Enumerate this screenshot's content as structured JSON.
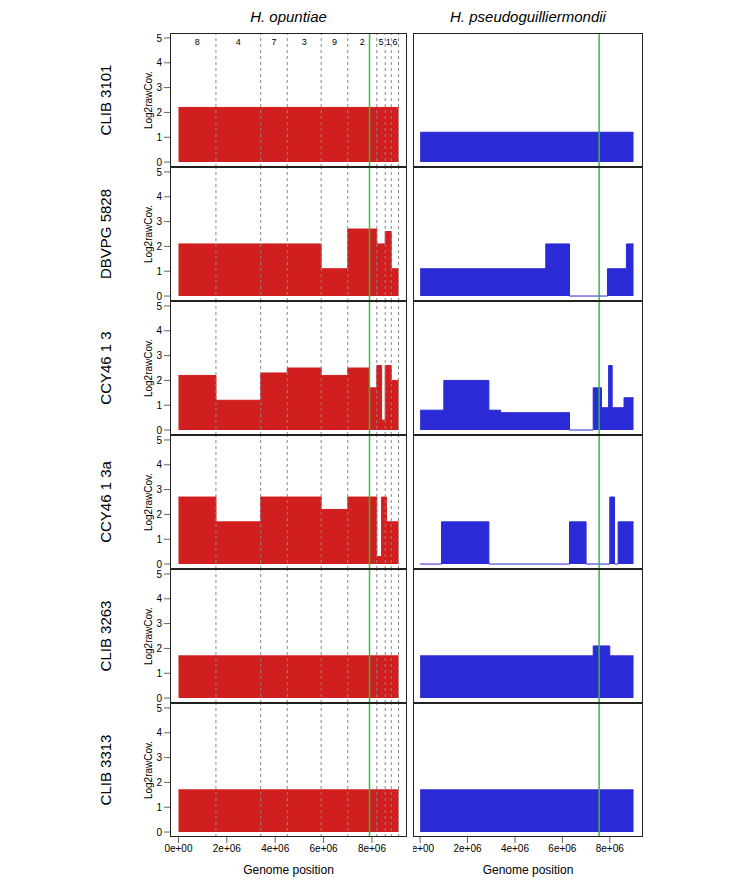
{
  "chart_data": [
    {
      "type": "area",
      "line_style": "step",
      "title": "H. opuntiae",
      "row_label": "CLIB 3101",
      "ylabel": "Log2rawCov.",
      "color": "#d11f1f",
      "x": [
        0,
        9100000
      ],
      "values": [
        2.2,
        2.2
      ],
      "xlim": [
        -350000,
        9450000
      ],
      "ylim": [
        -0.2,
        5.2
      ],
      "xticks": [
        {
          "value": 0,
          "label": "0e+00"
        },
        {
          "value": 2000000,
          "label": "2e+06"
        },
        {
          "value": 4000000,
          "label": "4e+06"
        },
        {
          "value": 6000000,
          "label": "6e+06"
        },
        {
          "value": 8000000,
          "label": "8e+06"
        }
      ],
      "yticks": [
        0,
        1,
        2,
        3,
        4,
        5
      ],
      "tick_labels": "y",
      "reference_x": 7900000,
      "chromosomes": [
        {
          "name": "8",
          "start": 0,
          "end": 1550000
        },
        {
          "name": "4",
          "start": 1550000,
          "end": 3400000
        },
        {
          "name": "7",
          "start": 3400000,
          "end": 4500000
        },
        {
          "name": "3",
          "start": 4500000,
          "end": 5900000
        },
        {
          "name": "9",
          "start": 5900000,
          "end": 7000000
        },
        {
          "name": "2",
          "start": 7000000,
          "end": 8200000
        },
        {
          "name": "5",
          "start": 8200000,
          "end": 8550000
        },
        {
          "name": "1",
          "start": 8550000,
          "end": 8800000
        },
        {
          "name": "6",
          "start": 8800000,
          "end": 9100000
        }
      ]
    },
    {
      "type": "area",
      "line_style": "step",
      "title": "H. pseudoguilliermondii",
      "color": "#2a2ad6",
      "x": [
        0,
        9000000
      ],
      "values": [
        1.2,
        1.2
      ],
      "xlim": [
        -300000,
        9400000
      ],
      "ylim": [
        -0.2,
        5.2
      ],
      "xticks": [
        {
          "value": 0,
          "label": "0e+00"
        },
        {
          "value": 2000000,
          "label": "2e+06"
        },
        {
          "value": 4000000,
          "label": "4e+06"
        },
        {
          "value": 6000000,
          "label": "6e+06"
        },
        {
          "value": 8000000,
          "label": "8e+06"
        }
      ],
      "yticks": [
        0,
        1,
        2,
        3,
        4,
        5
      ],
      "tick_labels": false,
      "reference_x": 7550000
    },
    {
      "type": "area",
      "line_style": "step",
      "row_label": "DBVPG 5828",
      "ylabel": "Log2rawCov.",
      "color": "#d11f1f",
      "x": [
        0,
        5900000,
        7000000,
        8200000,
        8550000,
        8800000,
        9100000
      ],
      "values": [
        2.1,
        1.1,
        2.7,
        2.1,
        2.6,
        1.1,
        1.1
      ],
      "xlim": [
        -350000,
        9450000
      ],
      "ylim": [
        -0.2,
        5.2
      ],
      "xticks": [
        {
          "value": 0,
          "label": "0e+00"
        },
        {
          "value": 2000000,
          "label": "2e+06"
        },
        {
          "value": 4000000,
          "label": "4e+06"
        },
        {
          "value": 6000000,
          "label": "6e+06"
        },
        {
          "value": 8000000,
          "label": "8e+06"
        }
      ],
      "yticks": [
        0,
        1,
        2,
        3,
        4,
        5
      ],
      "tick_labels": "y",
      "reference_x": 7900000,
      "boundaries": [
        1550000,
        3400000,
        4500000,
        5900000,
        7000000,
        8200000,
        8550000,
        8800000,
        9100000
      ]
    },
    {
      "type": "area",
      "line_style": "step",
      "color": "#2a2ad6",
      "x": [
        0,
        5300000,
        6300000,
        7900000,
        8700000,
        9000000
      ],
      "values": [
        1.1,
        2.1,
        0,
        1.1,
        2.1,
        2.1
      ],
      "xlim": [
        -300000,
        9400000
      ],
      "ylim": [
        -0.2,
        5.2
      ],
      "xticks": [
        {
          "value": 0,
          "label": "0e+00"
        },
        {
          "value": 2000000,
          "label": "2e+06"
        },
        {
          "value": 4000000,
          "label": "4e+06"
        },
        {
          "value": 6000000,
          "label": "6e+06"
        },
        {
          "value": 8000000,
          "label": "8e+06"
        }
      ],
      "yticks": [
        0,
        1,
        2,
        3,
        4,
        5
      ],
      "tick_labels": false,
      "reference_x": 7550000
    },
    {
      "type": "area",
      "line_style": "step",
      "row_label": "CCY46 1 3",
      "ylabel": "Log2rawCov.",
      "color": "#d11f1f",
      "x": [
        0,
        1550000,
        3400000,
        4500000,
        5900000,
        7000000,
        7900000,
        8200000,
        8400000,
        8550000,
        8800000,
        9100000
      ],
      "values": [
        2.2,
        1.2,
        2.3,
        2.5,
        2.2,
        2.5,
        1.7,
        2.6,
        0.4,
        2.6,
        2.0,
        2.0
      ],
      "xlim": [
        -350000,
        9450000
      ],
      "ylim": [
        -0.2,
        5.2
      ],
      "xticks": [
        {
          "value": 0,
          "label": "0e+00"
        },
        {
          "value": 2000000,
          "label": "2e+06"
        },
        {
          "value": 4000000,
          "label": "4e+06"
        },
        {
          "value": 6000000,
          "label": "6e+06"
        },
        {
          "value": 8000000,
          "label": "8e+06"
        }
      ],
      "yticks": [
        0,
        1,
        2,
        3,
        4,
        5
      ],
      "tick_labels": "y",
      "reference_x": 7900000,
      "boundaries": [
        1550000,
        3400000,
        4500000,
        5900000,
        7000000,
        8200000,
        8550000,
        8800000,
        9100000
      ]
    },
    {
      "type": "area",
      "line_style": "step",
      "color": "#2a2ad6",
      "x": [
        0,
        1000000,
        2900000,
        3400000,
        6300000,
        7300000,
        7650000,
        7950000,
        8100000,
        8600000,
        9000000
      ],
      "values": [
        0.8,
        2.0,
        0.8,
        0.7,
        0,
        1.7,
        0.9,
        2.6,
        0.9,
        1.3,
        1.3
      ],
      "xlim": [
        -300000,
        9400000
      ],
      "ylim": [
        -0.2,
        5.2
      ],
      "xticks": [
        {
          "value": 0,
          "label": "0e+00"
        },
        {
          "value": 2000000,
          "label": "2e+06"
        },
        {
          "value": 4000000,
          "label": "4e+06"
        },
        {
          "value": 6000000,
          "label": "6e+06"
        },
        {
          "value": 8000000,
          "label": "8e+06"
        }
      ],
      "yticks": [
        0,
        1,
        2,
        3,
        4,
        5
      ],
      "tick_labels": false,
      "reference_x": 7550000
    },
    {
      "type": "area",
      "line_style": "step",
      "row_label": "CCY46 1 3a",
      "ylabel": "Log2rawCov.",
      "color": "#d11f1f",
      "x": [
        0,
        1550000,
        3400000,
        5900000,
        7000000,
        8200000,
        8400000,
        8600000,
        9100000
      ],
      "values": [
        2.7,
        1.7,
        2.7,
        2.2,
        2.7,
        0.3,
        2.7,
        1.7,
        1.7
      ],
      "xlim": [
        -350000,
        9450000
      ],
      "ylim": [
        -0.2,
        5.2
      ],
      "xticks": [
        {
          "value": 0,
          "label": "0e+00"
        },
        {
          "value": 2000000,
          "label": "2e+06"
        },
        {
          "value": 4000000,
          "label": "4e+06"
        },
        {
          "value": 6000000,
          "label": "6e+06"
        },
        {
          "value": 8000000,
          "label": "8e+06"
        }
      ],
      "yticks": [
        0,
        1,
        2,
        3,
        4,
        5
      ],
      "tick_labels": "y",
      "reference_x": 7900000,
      "boundaries": [
        1550000,
        3400000,
        4500000,
        5900000,
        7000000,
        8200000,
        8550000,
        8800000,
        9100000
      ]
    },
    {
      "type": "area",
      "line_style": "step",
      "color": "#2a2ad6",
      "x": [
        0,
        900000,
        2900000,
        6300000,
        7000000,
        8000000,
        8200000,
        8350000,
        9000000
      ],
      "values": [
        0,
        1.7,
        0,
        1.7,
        0,
        2.7,
        0,
        1.7,
        1.7
      ],
      "xlim": [
        -300000,
        9400000
      ],
      "ylim": [
        -0.2,
        5.2
      ],
      "xticks": [
        {
          "value": 0,
          "label": "0e+00"
        },
        {
          "value": 2000000,
          "label": "2e+06"
        },
        {
          "value": 4000000,
          "label": "4e+06"
        },
        {
          "value": 6000000,
          "label": "6e+06"
        },
        {
          "value": 8000000,
          "label": "8e+06"
        }
      ],
      "yticks": [
        0,
        1,
        2,
        3,
        4,
        5
      ],
      "tick_labels": false,
      "reference_x": 7550000
    },
    {
      "type": "area",
      "line_style": "step",
      "row_label": "CLIB 3263",
      "ylabel": "Log2rawCov.",
      "color": "#d11f1f",
      "x": [
        0,
        9100000
      ],
      "values": [
        1.7,
        1.7
      ],
      "xlim": [
        -350000,
        9450000
      ],
      "ylim": [
        -0.2,
        5.2
      ],
      "xticks": [
        {
          "value": 0,
          "label": "0e+00"
        },
        {
          "value": 2000000,
          "label": "2e+06"
        },
        {
          "value": 4000000,
          "label": "4e+06"
        },
        {
          "value": 6000000,
          "label": "6e+06"
        },
        {
          "value": 8000000,
          "label": "8e+06"
        }
      ],
      "yticks": [
        0,
        1,
        2,
        3,
        4,
        5
      ],
      "tick_labels": "y",
      "reference_x": 7900000,
      "boundaries": [
        1550000,
        3400000,
        4500000,
        5900000,
        7000000,
        8200000,
        8550000,
        8800000,
        9100000
      ]
    },
    {
      "type": "area",
      "line_style": "step",
      "color": "#2a2ad6",
      "x": [
        0,
        7300000,
        8000000,
        9000000
      ],
      "values": [
        1.7,
        2.1,
        1.7,
        1.7
      ],
      "xlim": [
        -300000,
        9400000
      ],
      "ylim": [
        -0.2,
        5.2
      ],
      "xticks": [
        {
          "value": 0,
          "label": "0e+00"
        },
        {
          "value": 2000000,
          "label": "2e+06"
        },
        {
          "value": 4000000,
          "label": "4e+06"
        },
        {
          "value": 6000000,
          "label": "6e+06"
        },
        {
          "value": 8000000,
          "label": "8e+06"
        }
      ],
      "yticks": [
        0,
        1,
        2,
        3,
        4,
        5
      ],
      "tick_labels": false,
      "reference_x": 7550000
    },
    {
      "type": "area",
      "line_style": "step",
      "row_label": "CLIB 3313",
      "ylabel": "Log2rawCov.",
      "xlabel": "Genome position",
      "color": "#d11f1f",
      "x": [
        0,
        9100000
      ],
      "values": [
        1.7,
        1.7
      ],
      "xlim": [
        -350000,
        9450000
      ],
      "ylim": [
        -0.2,
        5.2
      ],
      "xticks": [
        {
          "value": 0,
          "label": "0e+00"
        },
        {
          "value": 2000000,
          "label": "2e+06"
        },
        {
          "value": 4000000,
          "label": "4e+06"
        },
        {
          "value": 6000000,
          "label": "6e+06"
        },
        {
          "value": 8000000,
          "label": "8e+06"
        }
      ],
      "yticks": [
        0,
        1,
        2,
        3,
        4,
        5
      ],
      "reference_x": 7900000,
      "boundaries": [
        1550000,
        3400000,
        4500000,
        5900000,
        7000000,
        8200000,
        8550000,
        8800000,
        9100000
      ]
    },
    {
      "type": "area",
      "line_style": "step",
      "xlabel": "Genome position",
      "color": "#2a2ad6",
      "x": [
        0,
        9000000
      ],
      "values": [
        1.7,
        1.7
      ],
      "xlim": [
        -300000,
        9400000
      ],
      "ylim": [
        -0.2,
        5.2
      ],
      "xticks": [
        {
          "value": 0,
          "label": "0e+00"
        },
        {
          "value": 2000000,
          "label": "2e+06"
        },
        {
          "value": 4000000,
          "label": "4e+06"
        },
        {
          "value": 6000000,
          "label": "6e+06"
        },
        {
          "value": 8000000,
          "label": "8e+06"
        }
      ],
      "yticks": [
        0,
        1,
        2,
        3,
        4,
        5
      ],
      "tick_labels": "x",
      "reference_x": 7550000
    }
  ]
}
